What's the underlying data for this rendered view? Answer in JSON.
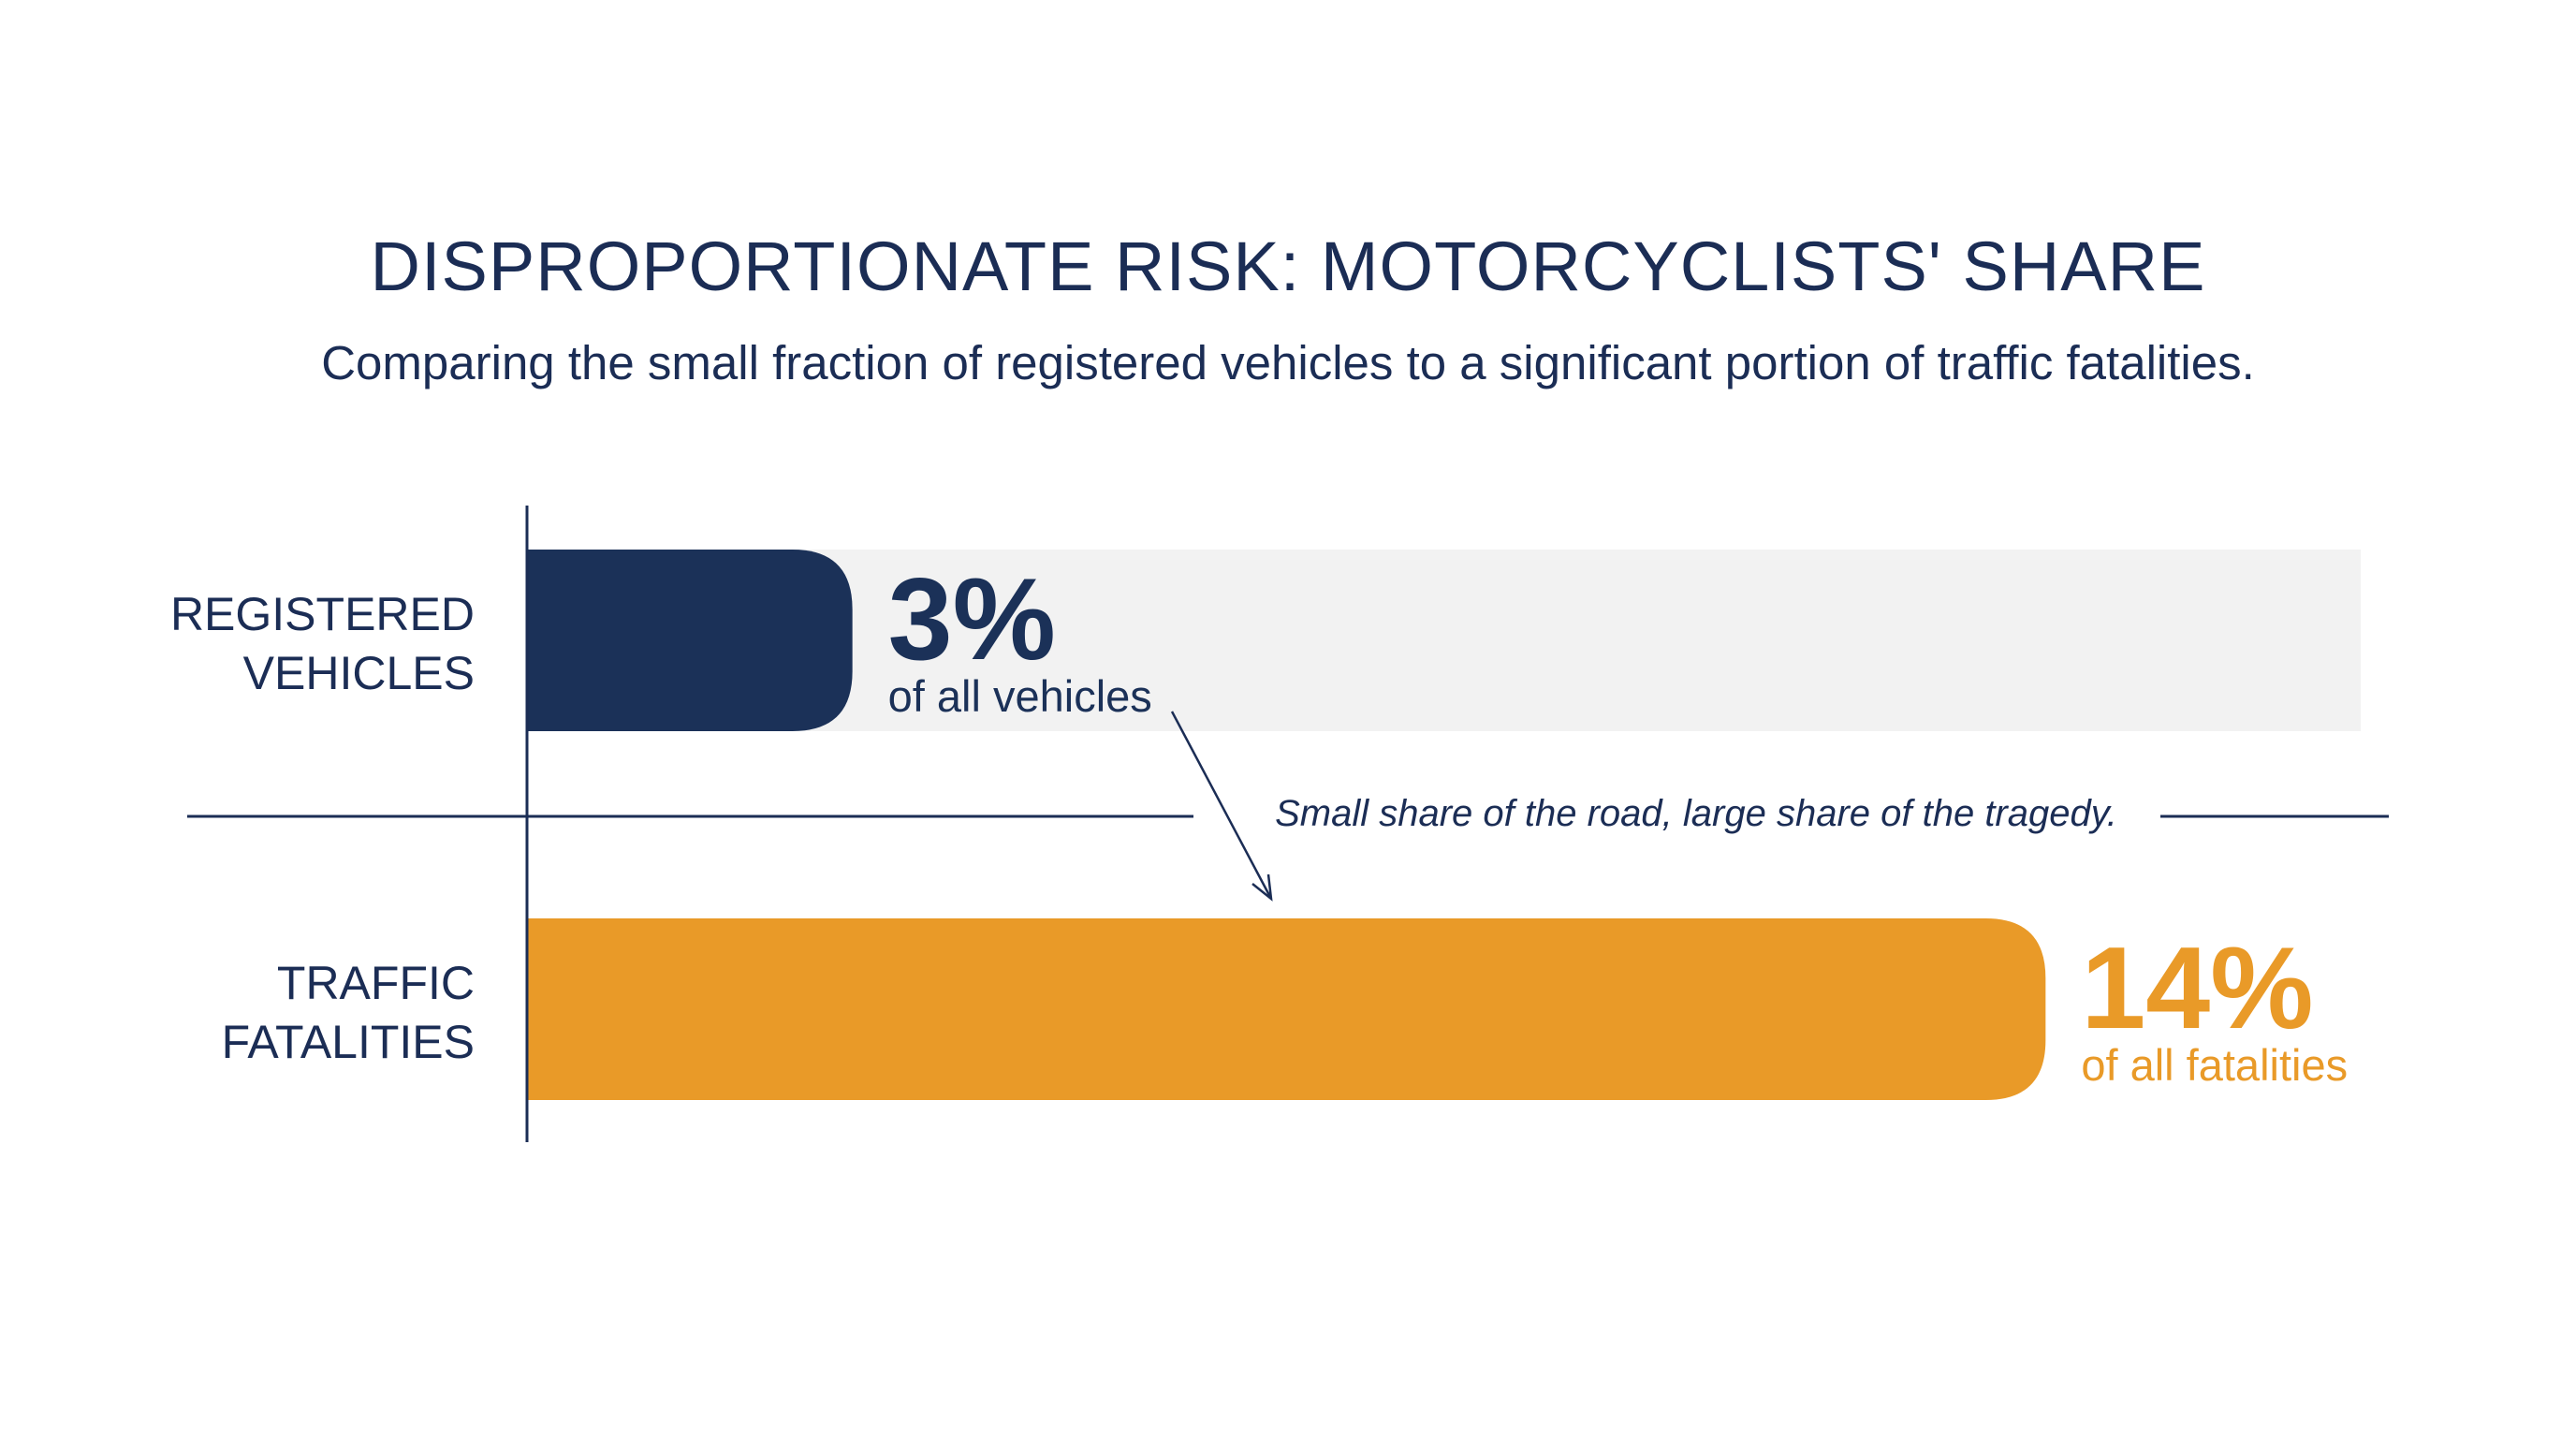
{
  "chart_data": {
    "type": "bar",
    "orientation": "horizontal",
    "title": "DISPROPORTIONATE RISK: MOTORCYCLISTS' SHARE",
    "subtitle": "Comparing the small fraction of registered vehicles to a significant portion of traffic fatalities.",
    "xlim": [
      0,
      17
    ],
    "grid": false,
    "legend": "none",
    "categories": [
      {
        "label_lines": [
          "REGISTERED",
          "VEHICLES"
        ],
        "value": 3,
        "value_label": "3%",
        "value_caption": "of all vehicles",
        "color": "#1b3158",
        "show_track": true
      },
      {
        "label_lines": [
          "TRAFFIC",
          "FATALITIES"
        ],
        "value": 14,
        "value_label": "14%",
        "value_caption": "of all fatalities",
        "color": "#e99a28",
        "show_track": false
      }
    ],
    "annotation": "Small share of the road, large share of the tragedy."
  },
  "colors": {
    "text": "#1b2d55",
    "axis": "#1b2d55",
    "track": "#f2f2f2",
    "accent": "#e99a28",
    "primary": "#1b3158"
  }
}
